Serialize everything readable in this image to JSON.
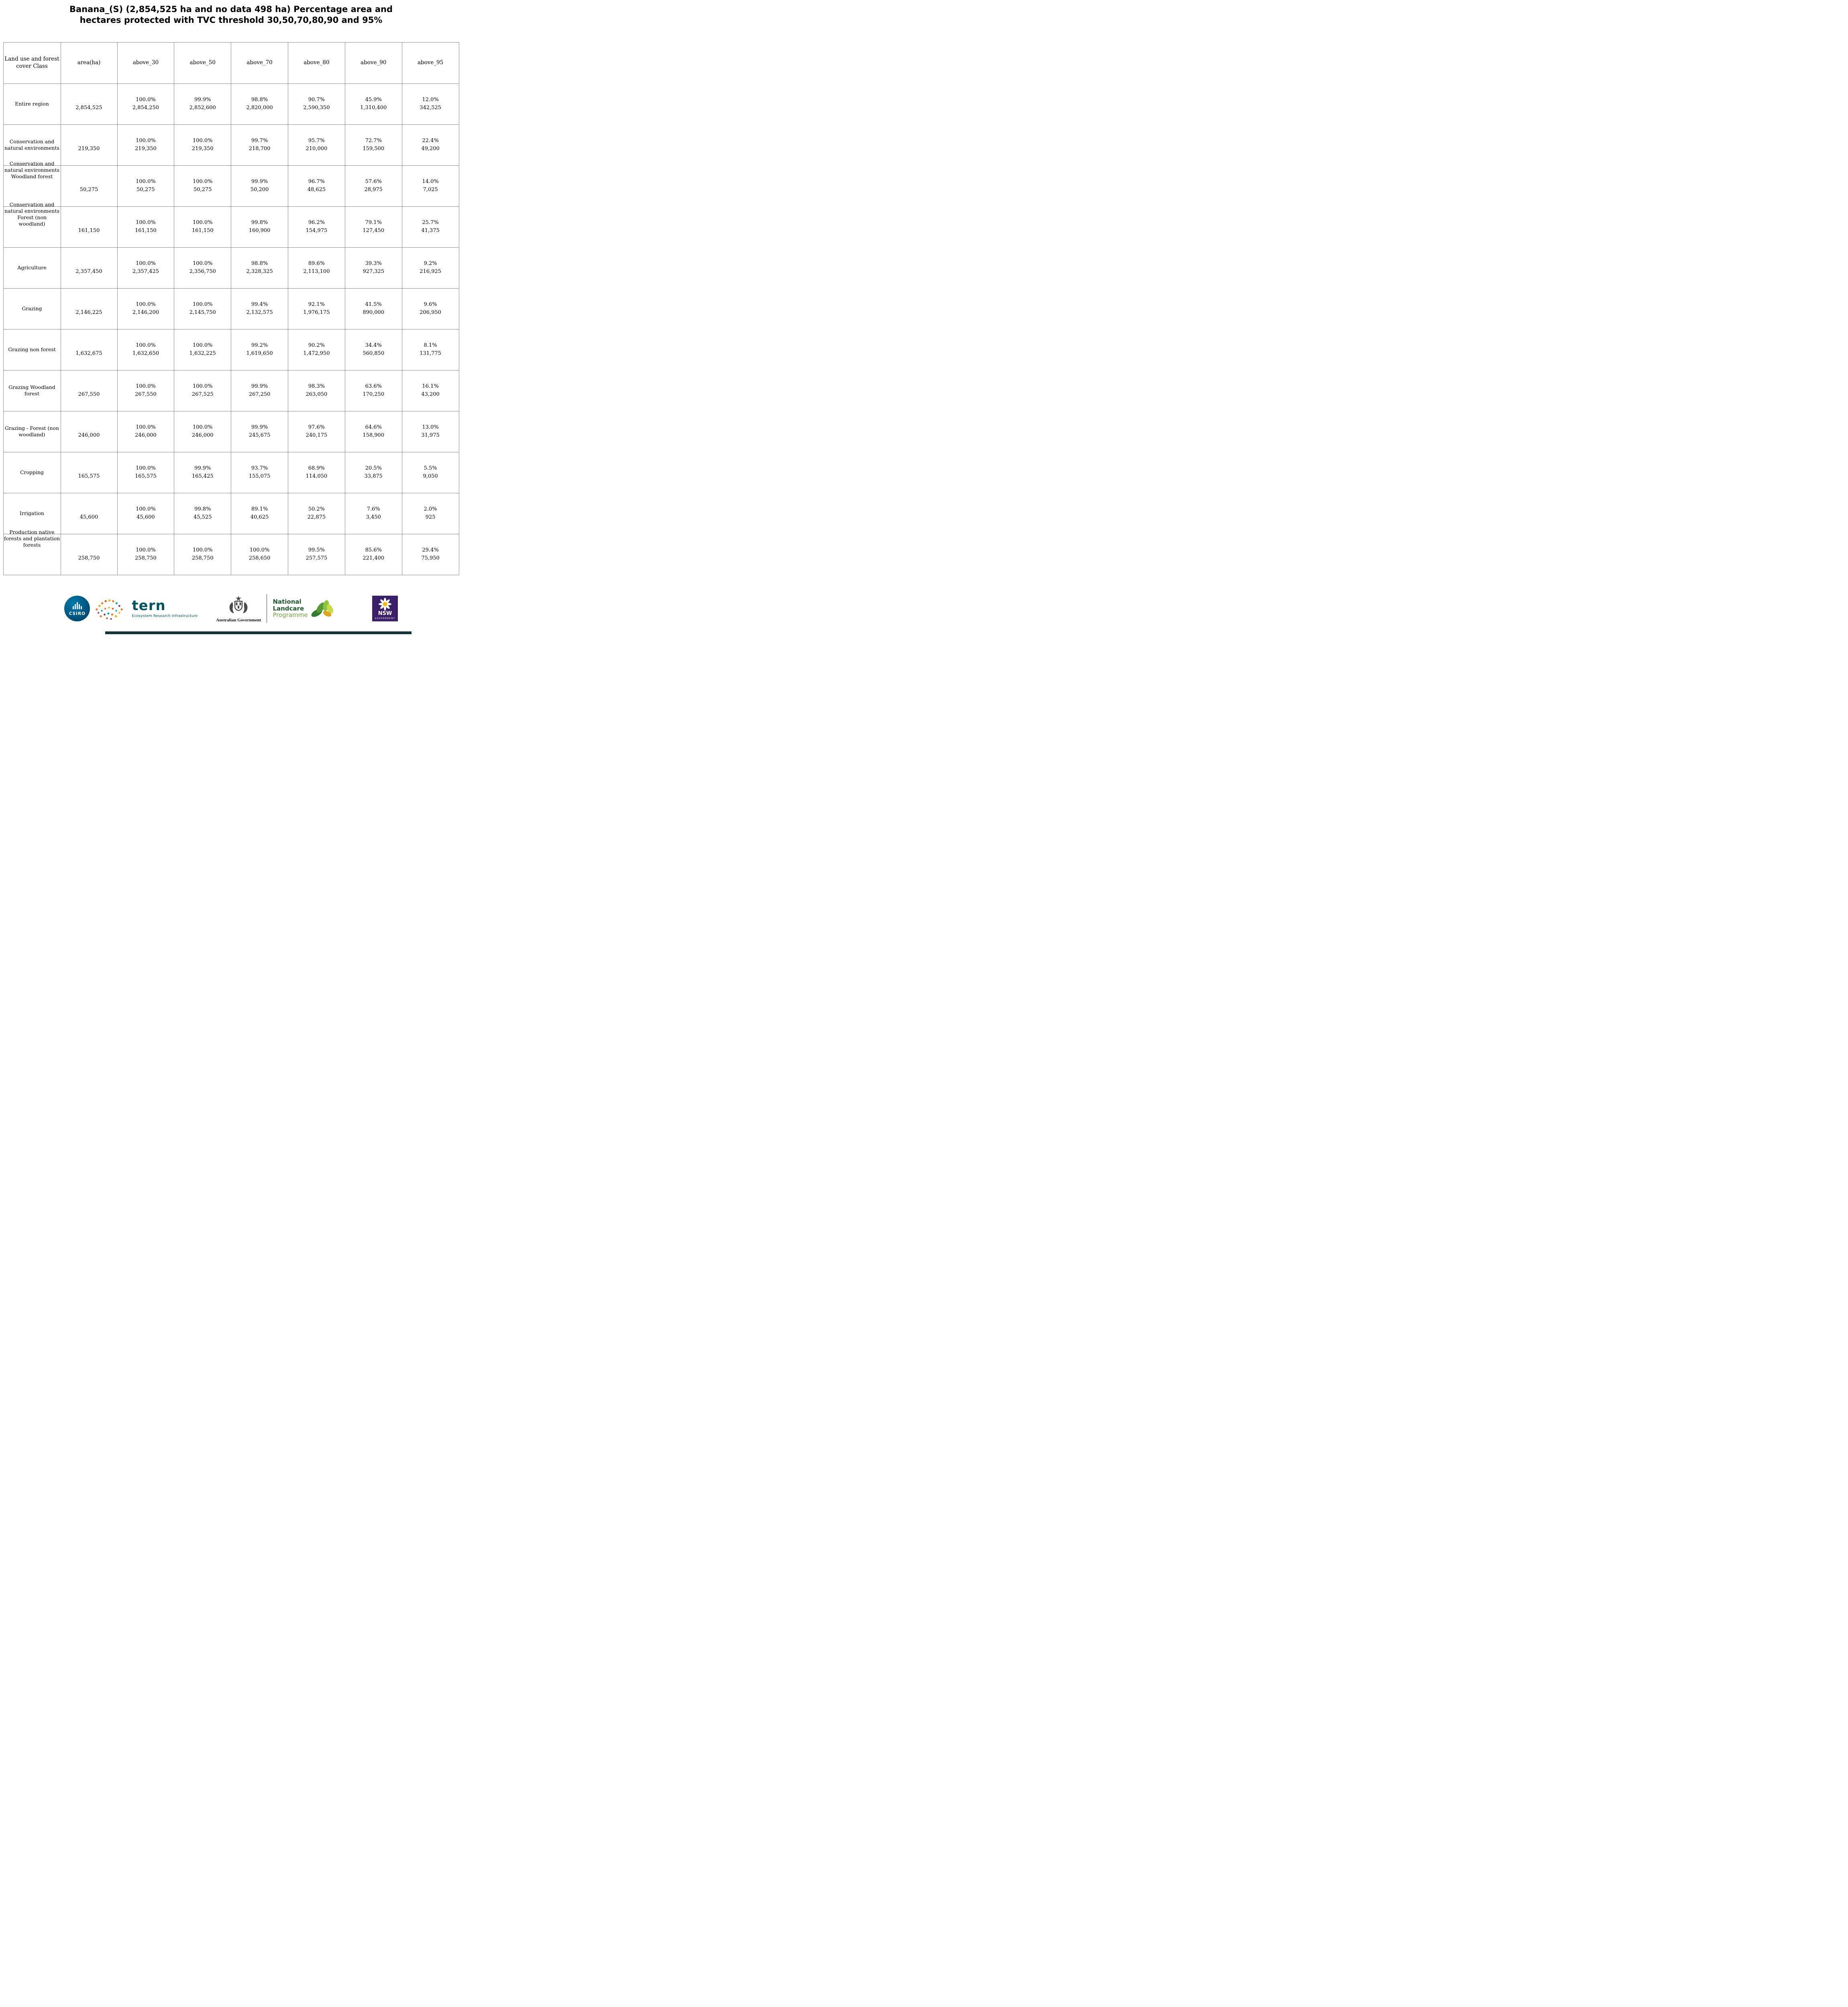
{
  "title": {
    "line1": "Banana_(S) (2,854,525 ha and no data 498 ha) Percentage area and",
    "line2": "hectares protected with TVC threshold 30,50,70,80,90 and 95%"
  },
  "table": {
    "headers": [
      "Land use and forest cover Class",
      "area(ha)",
      "above_30",
      "above_50",
      "above_70",
      "above_80",
      "above_90",
      "above_95"
    ],
    "rows": [
      {
        "label": "Entire region",
        "area": "2,854,525",
        "cells": [
          [
            "100.0%",
            "2,854,250"
          ],
          [
            "99.9%",
            "2,852,600"
          ],
          [
            "98.8%",
            "2,820,000"
          ],
          [
            "90.7%",
            "2,590,350"
          ],
          [
            "45.9%",
            "1,310,400"
          ],
          [
            "12.0%",
            "342,525"
          ]
        ]
      },
      {
        "label": "Conservation and natural environments",
        "area": "219,350",
        "cells": [
          [
            "100.0%",
            "219,350"
          ],
          [
            "100.0%",
            "219,350"
          ],
          [
            "99.7%",
            "218,700"
          ],
          [
            "95.7%",
            "210,000"
          ],
          [
            "72.7%",
            "159,500"
          ],
          [
            "22.4%",
            "49,200"
          ]
        ]
      },
      {
        "label": "Conservation and natural environments Woodland forest",
        "area": "50,275",
        "cells": [
          [
            "100.0%",
            "50,275"
          ],
          [
            "100.0%",
            "50,275"
          ],
          [
            "99.9%",
            "50,200"
          ],
          [
            "96.7%",
            "48,625"
          ],
          [
            "57.6%",
            "28,975"
          ],
          [
            "14.0%",
            "7,025"
          ]
        ]
      },
      {
        "label": "Conservation and natural environments Forest (non woodland)",
        "area": "161,150",
        "cells": [
          [
            "100.0%",
            "161,150"
          ],
          [
            "100.0%",
            "161,150"
          ],
          [
            "99.8%",
            "160,900"
          ],
          [
            "96.2%",
            "154,975"
          ],
          [
            "79.1%",
            "127,450"
          ],
          [
            "25.7%",
            "41,375"
          ]
        ]
      },
      {
        "label": "Agriculture",
        "area": "2,357,450",
        "cells": [
          [
            "100.0%",
            "2,357,425"
          ],
          [
            "100.0%",
            "2,356,750"
          ],
          [
            "98.8%",
            "2,328,325"
          ],
          [
            "89.6%",
            "2,113,100"
          ],
          [
            "39.3%",
            "927,325"
          ],
          [
            "9.2%",
            "216,925"
          ]
        ]
      },
      {
        "label": "Grazing",
        "area": "2,146,225",
        "cells": [
          [
            "100.0%",
            "2,146,200"
          ],
          [
            "100.0%",
            "2,145,750"
          ],
          [
            "99.4%",
            "2,132,575"
          ],
          [
            "92.1%",
            "1,976,175"
          ],
          [
            "41.5%",
            "890,000"
          ],
          [
            "9.6%",
            "206,950"
          ]
        ]
      },
      {
        "label": "Grazing non forest",
        "area": "1,632,675",
        "cells": [
          [
            "100.0%",
            "1,632,650"
          ],
          [
            "100.0%",
            "1,632,225"
          ],
          [
            "99.2%",
            "1,619,650"
          ],
          [
            "90.2%",
            "1,472,950"
          ],
          [
            "34.4%",
            "560,850"
          ],
          [
            "8.1%",
            "131,775"
          ]
        ]
      },
      {
        "label": "Grazing Woodland forest",
        "area": "267,550",
        "cells": [
          [
            "100.0%",
            "267,550"
          ],
          [
            "100.0%",
            "267,525"
          ],
          [
            "99.9%",
            "267,250"
          ],
          [
            "98.3%",
            "263,050"
          ],
          [
            "63.6%",
            "170,250"
          ],
          [
            "16.1%",
            "43,200"
          ]
        ]
      },
      {
        "label": "Grazing - Forest (non woodland)",
        "area": "246,000",
        "cells": [
          [
            "100.0%",
            "246,000"
          ],
          [
            "100.0%",
            "246,000"
          ],
          [
            "99.9%",
            "245,675"
          ],
          [
            "97.6%",
            "240,175"
          ],
          [
            "64.6%",
            "158,900"
          ],
          [
            "13.0%",
            "31,975"
          ]
        ]
      },
      {
        "label": "Cropping",
        "area": "165,575",
        "cells": [
          [
            "100.0%",
            "165,575"
          ],
          [
            "99.9%",
            "165,425"
          ],
          [
            "93.7%",
            "155,075"
          ],
          [
            "68.9%",
            "114,050"
          ],
          [
            "20.5%",
            "33,875"
          ],
          [
            "5.5%",
            "9,050"
          ]
        ]
      },
      {
        "label": "Irrigation",
        "area": "45,600",
        "cells": [
          [
            "100.0%",
            "45,600"
          ],
          [
            "99.8%",
            "45,525"
          ],
          [
            "89.1%",
            "40,625"
          ],
          [
            "50.2%",
            "22,875"
          ],
          [
            "7.6%",
            "3,450"
          ],
          [
            "2.0%",
            "925"
          ]
        ]
      },
      {
        "label": "Production native forests and plantation forests",
        "area": "258,750",
        "cells": [
          [
            "100.0%",
            "258,750"
          ],
          [
            "100.0%",
            "258,750"
          ],
          [
            "100.0%",
            "258,650"
          ],
          [
            "99.5%",
            "257,575"
          ],
          [
            "85.6%",
            "221,400"
          ],
          [
            "29.4%",
            "75,950"
          ]
        ]
      }
    ]
  },
  "footer": {
    "csiro_label": "CSIRO",
    "tern_label": "tern",
    "tern_subtitle": "Ecosystem Research Infrastructure",
    "aus_gov_label": "Australian Government",
    "landcare_line1": "National",
    "landcare_line2": "Landcare",
    "landcare_line3": "Programme",
    "nsw_label": "NSW",
    "nsw_sublabel": "GOVERNMENT"
  },
  "colors": {
    "csiro-blue": "#0079a8",
    "tern-teal": "#00555e",
    "landcare-green-dark": "#1e5b2a",
    "landcare-green-light": "#6fa43a",
    "nsw-purple": "#3b1f69",
    "table-border": "#8a8a8a",
    "footer-bar": "#17343b"
  }
}
